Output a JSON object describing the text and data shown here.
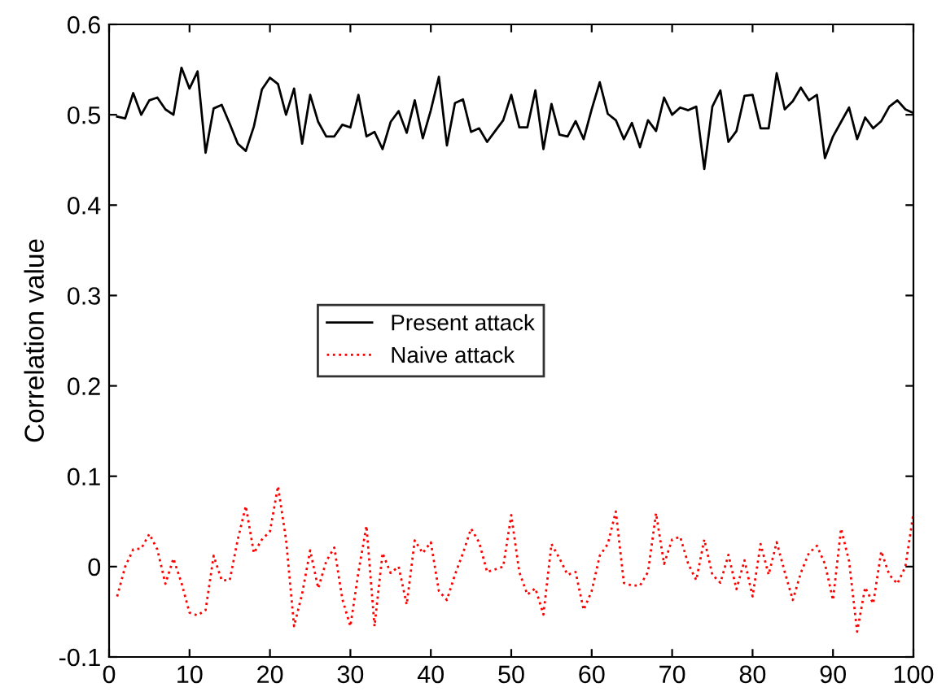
{
  "chart_data": {
    "type": "line",
    "ylabel": "Correlation value",
    "xlim": [
      0,
      100
    ],
    "ylim": [
      -0.1,
      0.6
    ],
    "xticks": [
      0,
      10,
      20,
      30,
      40,
      50,
      60,
      70,
      80,
      90,
      100
    ],
    "yticks": [
      -0.1,
      0,
      0.1,
      0.2,
      0.3,
      0.4,
      0.5,
      0.6
    ],
    "x": [
      1,
      2,
      3,
      4,
      5,
      6,
      7,
      8,
      9,
      10,
      11,
      12,
      13,
      14,
      15,
      16,
      17,
      18,
      19,
      20,
      21,
      22,
      23,
      24,
      25,
      26,
      27,
      28,
      29,
      30,
      31,
      32,
      33,
      34,
      35,
      36,
      37,
      38,
      39,
      40,
      41,
      42,
      43,
      44,
      45,
      46,
      47,
      48,
      49,
      50,
      51,
      52,
      53,
      54,
      55,
      56,
      57,
      58,
      59,
      60,
      61,
      62,
      63,
      64,
      65,
      66,
      67,
      68,
      69,
      70,
      71,
      72,
      73,
      74,
      75,
      76,
      77,
      78,
      79,
      80,
      81,
      82,
      83,
      84,
      85,
      86,
      87,
      88,
      89,
      90,
      91,
      92,
      93,
      94,
      95,
      96,
      97,
      98,
      99,
      100
    ],
    "legend": "center",
    "grid": false,
    "series": [
      {
        "name": "Present attack",
        "color": "#000000",
        "line_style": "solid",
        "values": [
          0.498,
          0.496,
          0.524,
          0.5,
          0.516,
          0.519,
          0.506,
          0.5,
          0.552,
          0.529,
          0.548,
          0.458,
          0.507,
          0.511,
          0.49,
          0.468,
          0.46,
          0.487,
          0.528,
          0.541,
          0.534,
          0.5,
          0.529,
          0.468,
          0.522,
          0.492,
          0.476,
          0.476,
          0.489,
          0.486,
          0.522,
          0.476,
          0.481,
          0.462,
          0.492,
          0.504,
          0.48,
          0.516,
          0.474,
          0.505,
          0.542,
          0.466,
          0.513,
          0.517,
          0.481,
          0.485,
          0.47,
          0.482,
          0.494,
          0.522,
          0.486,
          0.486,
          0.527,
          0.462,
          0.512,
          0.478,
          0.476,
          0.493,
          0.473,
          0.506,
          0.536,
          0.501,
          0.494,
          0.473,
          0.491,
          0.464,
          0.494,
          0.482,
          0.519,
          0.5,
          0.508,
          0.505,
          0.509,
          0.44,
          0.509,
          0.527,
          0.47,
          0.482,
          0.521,
          0.522,
          0.485,
          0.485,
          0.546,
          0.506,
          0.515,
          0.53,
          0.516,
          0.522,
          0.452,
          0.476,
          0.492,
          0.508,
          0.473,
          0.497,
          0.485,
          0.493,
          0.509,
          0.516,
          0.506,
          0.502
        ]
      },
      {
        "name": "Naive attack",
        "color": "#ff0000",
        "line_style": "dotted",
        "values": [
          -0.033,
          0,
          0.019,
          0.02,
          0.036,
          0.019,
          -0.019,
          0.009,
          -0.018,
          -0.051,
          -0.054,
          -0.048,
          0.012,
          -0.015,
          -0.015,
          0.03,
          0.067,
          0.015,
          0.03,
          0.039,
          0.089,
          0.03,
          -0.066,
          -0.03,
          0.018,
          -0.024,
          0.006,
          0.021,
          -0.036,
          -0.066,
          -0.006,
          0.045,
          -0.066,
          0.015,
          -0.007,
          0,
          -0.042,
          0.029,
          0.015,
          0.027,
          -0.027,
          -0.037,
          -0.009,
          0.015,
          0.042,
          0.027,
          -0.006,
          -0.003,
          0,
          0.057,
          -0.006,
          -0.031,
          -0.024,
          -0.053,
          0.025,
          0.009,
          -0.009,
          -0.006,
          -0.048,
          -0.027,
          0.012,
          0.025,
          0.061,
          -0.018,
          -0.021,
          -0.021,
          -0.006,
          0.059,
          0.003,
          0.03,
          0.033,
          0.003,
          -0.015,
          0.03,
          -0.009,
          -0.018,
          0.013,
          -0.025,
          0.007,
          -0.033,
          0.025,
          -0.009,
          0.027,
          -0.006,
          -0.037,
          -0.007,
          0.015,
          0.023,
          0.003,
          -0.037,
          0.042,
          0.006,
          -0.072,
          -0.023,
          -0.041,
          0.017,
          -0.009,
          -0.019,
          0,
          0.059
        ]
      }
    ]
  }
}
